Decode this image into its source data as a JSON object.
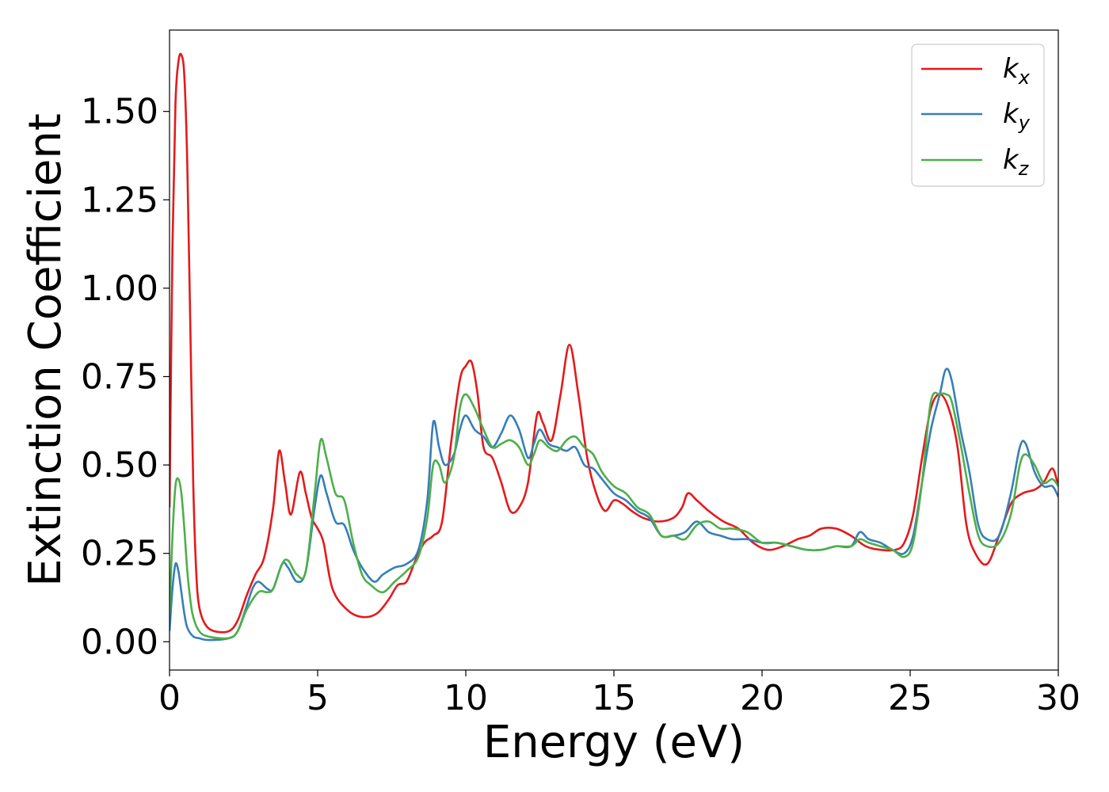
{
  "chart_data": {
    "type": "line",
    "title": "",
    "xlabel": "Energy (eV)",
    "ylabel": "Extinction Coefficient",
    "xlim": [
      0,
      30
    ],
    "ylim": [
      -0.08,
      1.73
    ],
    "xticks": [
      0,
      5,
      10,
      15,
      20,
      25,
      30
    ],
    "xtick_labels": [
      "0",
      "5",
      "10",
      "15",
      "20",
      "25",
      "30"
    ],
    "yticks": [
      0.0,
      0.25,
      0.5,
      0.75,
      1.0,
      1.25,
      1.5
    ],
    "ytick_labels": [
      "0.00",
      "0.25",
      "0.50",
      "0.75",
      "1.00",
      "1.25",
      "1.50"
    ],
    "grid": false,
    "legend_position": "top-right",
    "series": [
      {
        "name": "k_x",
        "legend_main": "k",
        "legend_sub": "x",
        "color": "#e41a1c",
        "x": [
          0,
          0.1,
          0.2,
          0.3,
          0.4,
          0.5,
          0.6,
          0.7,
          0.8,
          0.9,
          1.0,
          1.2,
          1.5,
          2.0,
          2.3,
          2.6,
          2.9,
          3.2,
          3.5,
          3.7,
          3.9,
          4.1,
          4.4,
          4.6,
          4.8,
          5.0,
          5.2,
          5.5,
          6.0,
          6.5,
          7.0,
          7.4,
          7.7,
          8.0,
          8.3,
          8.6,
          8.9,
          9.2,
          9.5,
          9.8,
          10.0,
          10.2,
          10.4,
          10.6,
          10.9,
          11.2,
          11.5,
          11.8,
          12.1,
          12.4,
          12.6,
          12.9,
          13.2,
          13.5,
          13.8,
          14.1,
          14.4,
          14.7,
          15.0,
          15.3,
          15.6,
          16.0,
          16.5,
          17.0,
          17.3,
          17.5,
          17.8,
          18.2,
          18.7,
          19.2,
          19.7,
          20.2,
          20.7,
          21.2,
          21.6,
          22.0,
          22.5,
          23.0,
          23.5,
          24.0,
          24.5,
          24.8,
          25.1,
          25.4,
          25.7,
          26.0,
          26.3,
          26.6,
          26.9,
          27.2,
          27.6,
          28.0,
          28.4,
          28.8,
          29.2,
          29.5,
          29.8,
          30.0
        ],
        "y": [
          0.38,
          1.12,
          1.52,
          1.64,
          1.66,
          1.6,
          1.35,
          0.9,
          0.45,
          0.2,
          0.1,
          0.05,
          0.03,
          0.03,
          0.06,
          0.13,
          0.19,
          0.24,
          0.38,
          0.54,
          0.45,
          0.36,
          0.48,
          0.42,
          0.35,
          0.32,
          0.28,
          0.15,
          0.09,
          0.07,
          0.08,
          0.12,
          0.16,
          0.17,
          0.23,
          0.28,
          0.3,
          0.34,
          0.56,
          0.74,
          0.78,
          0.79,
          0.7,
          0.55,
          0.52,
          0.45,
          0.37,
          0.38,
          0.45,
          0.64,
          0.62,
          0.57,
          0.7,
          0.84,
          0.7,
          0.52,
          0.42,
          0.37,
          0.4,
          0.39,
          0.37,
          0.35,
          0.34,
          0.35,
          0.38,
          0.42,
          0.4,
          0.37,
          0.34,
          0.32,
          0.28,
          0.26,
          0.27,
          0.29,
          0.3,
          0.32,
          0.32,
          0.3,
          0.27,
          0.26,
          0.26,
          0.28,
          0.36,
          0.52,
          0.66,
          0.7,
          0.66,
          0.55,
          0.33,
          0.25,
          0.22,
          0.3,
          0.39,
          0.42,
          0.43,
          0.45,
          0.49,
          0.44
        ]
      },
      {
        "name": "k_y",
        "legend_main": "k",
        "legend_sub": "y",
        "color": "#377eb8",
        "x": [
          0,
          0.1,
          0.2,
          0.3,
          0.4,
          0.5,
          0.6,
          0.8,
          1.0,
          1.3,
          2.0,
          2.3,
          2.6,
          2.8,
          3.0,
          3.3,
          3.5,
          3.8,
          4.0,
          4.3,
          4.6,
          4.9,
          5.1,
          5.3,
          5.6,
          5.9,
          6.2,
          6.5,
          6.9,
          7.2,
          7.6,
          8.0,
          8.4,
          8.7,
          8.9,
          9.1,
          9.3,
          9.6,
          9.8,
          10.0,
          10.3,
          10.6,
          10.9,
          11.2,
          11.5,
          11.8,
          12.1,
          12.3,
          12.5,
          12.8,
          13.1,
          13.4,
          13.7,
          14.0,
          14.3,
          14.6,
          15.0,
          15.4,
          15.8,
          16.2,
          16.6,
          17.0,
          17.4,
          17.8,
          18.2,
          18.6,
          19.0,
          19.5,
          20.0,
          20.5,
          21.0,
          21.5,
          22.0,
          22.5,
          23.0,
          23.3,
          23.6,
          24.0,
          24.4,
          24.8,
          25.1,
          25.4,
          25.7,
          26.0,
          26.2,
          26.4,
          26.7,
          27.0,
          27.3,
          27.6,
          28.0,
          28.4,
          28.7,
          28.9,
          29.2,
          29.5,
          29.8,
          30.0
        ],
        "y": [
          0.03,
          0.15,
          0.22,
          0.2,
          0.14,
          0.08,
          0.04,
          0.015,
          0.01,
          0.005,
          0.01,
          0.03,
          0.1,
          0.15,
          0.17,
          0.15,
          0.15,
          0.22,
          0.21,
          0.17,
          0.2,
          0.38,
          0.47,
          0.42,
          0.34,
          0.33,
          0.26,
          0.21,
          0.17,
          0.19,
          0.21,
          0.22,
          0.26,
          0.4,
          0.62,
          0.55,
          0.5,
          0.53,
          0.6,
          0.64,
          0.6,
          0.58,
          0.55,
          0.59,
          0.64,
          0.6,
          0.52,
          0.56,
          0.6,
          0.56,
          0.55,
          0.54,
          0.55,
          0.5,
          0.49,
          0.46,
          0.42,
          0.4,
          0.37,
          0.35,
          0.3,
          0.3,
          0.31,
          0.34,
          0.31,
          0.3,
          0.29,
          0.29,
          0.28,
          0.28,
          0.27,
          0.26,
          0.26,
          0.27,
          0.27,
          0.31,
          0.29,
          0.28,
          0.26,
          0.25,
          0.3,
          0.45,
          0.6,
          0.7,
          0.77,
          0.74,
          0.6,
          0.48,
          0.33,
          0.29,
          0.3,
          0.42,
          0.55,
          0.56,
          0.48,
          0.44,
          0.44,
          0.41
        ]
      },
      {
        "name": "k_z",
        "legend_main": "k",
        "legend_sub": "z",
        "color": "#4daf4a",
        "x": [
          0,
          0.1,
          0.2,
          0.3,
          0.4,
          0.5,
          0.6,
          0.7,
          0.8,
          1.0,
          1.3,
          2.0,
          2.3,
          2.6,
          3.0,
          3.3,
          3.5,
          3.8,
          4.0,
          4.3,
          4.6,
          4.9,
          5.1,
          5.3,
          5.6,
          5.9,
          6.2,
          6.5,
          6.8,
          7.2,
          7.6,
          8.0,
          8.4,
          8.7,
          8.9,
          9.1,
          9.3,
          9.6,
          9.8,
          10.0,
          10.3,
          10.6,
          10.9,
          11.2,
          11.5,
          11.8,
          12.1,
          12.3,
          12.5,
          12.8,
          13.1,
          13.4,
          13.7,
          14.0,
          14.3,
          14.6,
          15.0,
          15.4,
          15.8,
          16.2,
          16.6,
          17.0,
          17.4,
          17.8,
          18.2,
          18.6,
          19.0,
          19.5,
          20.0,
          20.5,
          21.0,
          21.5,
          22.0,
          22.5,
          23.0,
          23.3,
          23.6,
          24.0,
          24.4,
          24.8,
          25.1,
          25.4,
          25.7,
          26.0,
          26.2,
          26.4,
          26.7,
          27.0,
          27.3,
          27.6,
          28.0,
          28.4,
          28.7,
          28.9,
          29.2,
          29.5,
          29.8,
          30.0
        ],
        "y": [
          0.08,
          0.3,
          0.44,
          0.46,
          0.42,
          0.32,
          0.2,
          0.12,
          0.07,
          0.03,
          0.015,
          0.01,
          0.03,
          0.09,
          0.14,
          0.14,
          0.15,
          0.22,
          0.23,
          0.19,
          0.2,
          0.42,
          0.57,
          0.52,
          0.42,
          0.4,
          0.28,
          0.19,
          0.16,
          0.14,
          0.17,
          0.2,
          0.24,
          0.35,
          0.5,
          0.5,
          0.45,
          0.52,
          0.66,
          0.7,
          0.66,
          0.6,
          0.55,
          0.56,
          0.57,
          0.55,
          0.5,
          0.53,
          0.57,
          0.55,
          0.54,
          0.57,
          0.58,
          0.55,
          0.53,
          0.48,
          0.44,
          0.42,
          0.38,
          0.36,
          0.3,
          0.3,
          0.29,
          0.33,
          0.34,
          0.32,
          0.32,
          0.31,
          0.28,
          0.28,
          0.27,
          0.26,
          0.26,
          0.27,
          0.27,
          0.29,
          0.28,
          0.27,
          0.26,
          0.24,
          0.28,
          0.45,
          0.68,
          0.7,
          0.7,
          0.68,
          0.56,
          0.42,
          0.3,
          0.27,
          0.28,
          0.36,
          0.5,
          0.53,
          0.5,
          0.45,
          0.46,
          0.44
        ]
      }
    ]
  }
}
